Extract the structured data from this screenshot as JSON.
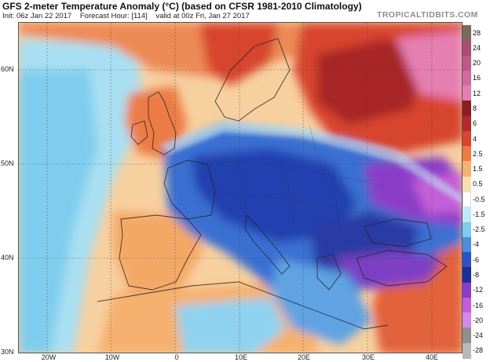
{
  "header": {
    "title": "GFS 2-meter Temperature Anomaly (°C) (based on CFSR 1981-2010 Climatology)",
    "init": "Init: 06z Jan 22 2017",
    "forecast_hour": "Forecast Hour: [114]",
    "valid": "valid at 00z Fri, Jan 27 2017",
    "brand": "TROPICALTIDBITS.COM"
  },
  "axes": {
    "lat_labels": [
      "60N",
      "50N",
      "40N",
      "30N"
    ],
    "lon_labels": [
      "20W",
      "10W",
      "0",
      "10E",
      "20E",
      "30E",
      "40E"
    ]
  },
  "colorbar": {
    "levels": [
      {
        "label": "28",
        "color": "#7a6a5e"
      },
      {
        "label": "24",
        "color": "#a84e6e"
      },
      {
        "label": "20",
        "color": "#c0588a"
      },
      {
        "label": "16",
        "color": "#d26aa0"
      },
      {
        "label": "12",
        "color": "#e57fb2"
      },
      {
        "label": "8",
        "color": "#8c1d24"
      },
      {
        "label": "6",
        "color": "#b22a2a"
      },
      {
        "label": "4",
        "color": "#d8452e"
      },
      {
        "label": "2.5",
        "color": "#ec7b45"
      },
      {
        "label": "1.5",
        "color": "#f6b070"
      },
      {
        "label": "0.5",
        "color": "#fbe0ad"
      },
      {
        "label": "-0.5",
        "color": "#ffffff"
      },
      {
        "label": "-1.5",
        "color": "#bfeaf7"
      },
      {
        "label": "-2.5",
        "color": "#7dcdee"
      },
      {
        "label": "-4",
        "color": "#4e8edb"
      },
      {
        "label": "-6",
        "color": "#2d52c5"
      },
      {
        "label": "-8",
        "color": "#1f2e93"
      },
      {
        "label": "-12",
        "color": "#8c3cc8"
      },
      {
        "label": "-16",
        "color": "#c35ed8"
      },
      {
        "label": "-20",
        "color": "#d589e6"
      },
      {
        "label": "-24",
        "color": "#8f8f8f"
      },
      {
        "label": "-28",
        "color": "#b8b8b8"
      }
    ]
  }
}
